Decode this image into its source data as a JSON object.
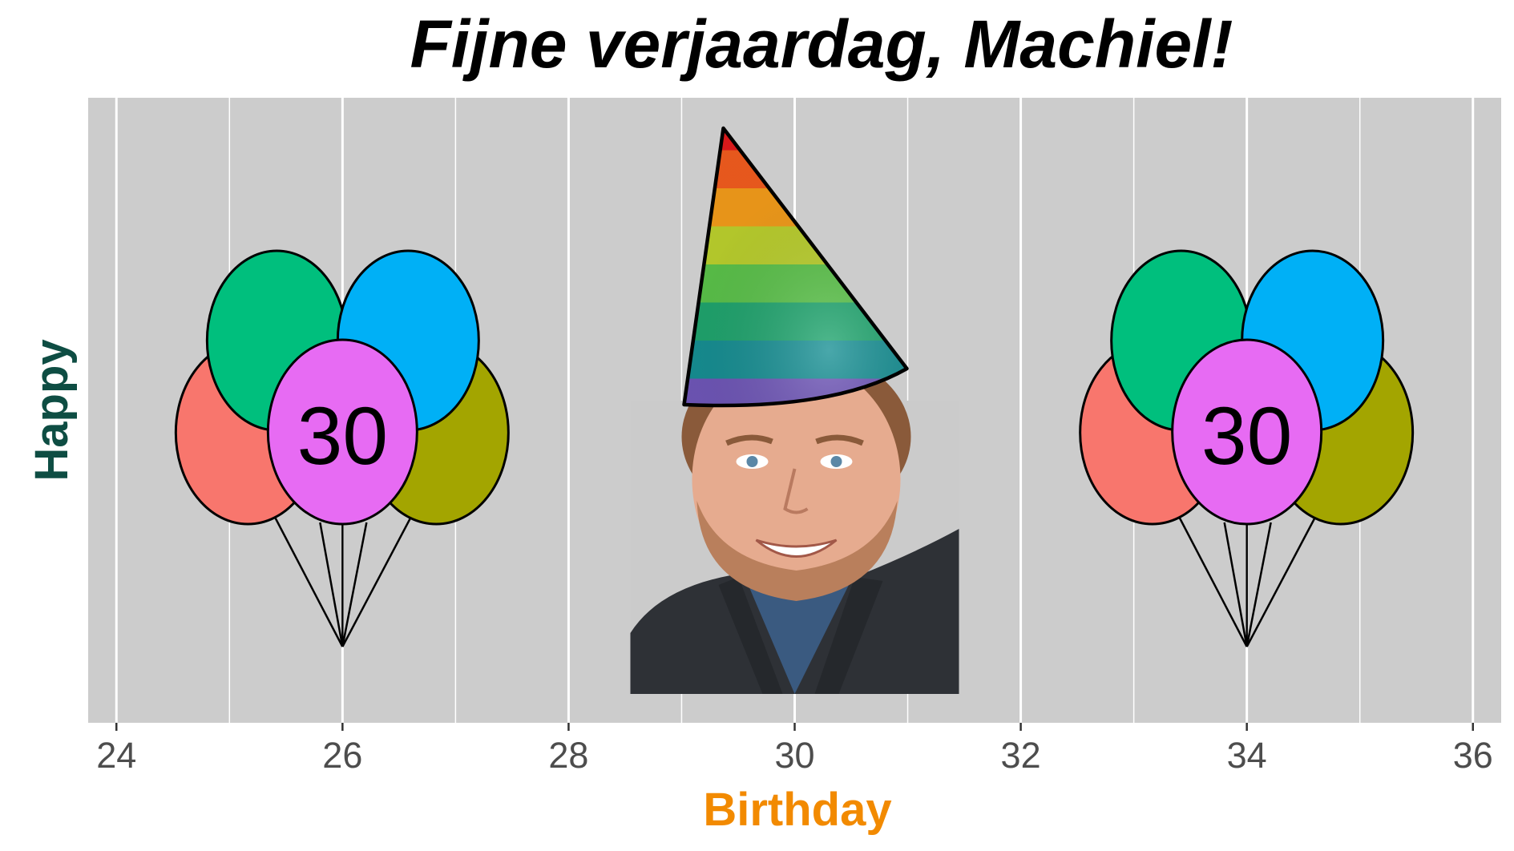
{
  "chart_data": {
    "type": "scatter",
    "title": "Fijne verjaardag, Machiel!",
    "xlabel": "Birthday",
    "ylabel": "Happy",
    "xlim": [
      23.75,
      36.25
    ],
    "x_ticks": [
      24,
      26,
      28,
      30,
      32,
      34,
      36
    ],
    "x_tick_labels": [
      "24",
      "26",
      "28",
      "30",
      "32",
      "34",
      "36"
    ],
    "grid": true,
    "legend": "none",
    "points": [
      {
        "x": 26,
        "marker": "balloon-bunch",
        "label": "30"
      },
      {
        "x": 30,
        "marker": "portrait-with-party-hat"
      },
      {
        "x": 34,
        "marker": "balloon-bunch",
        "label": "30"
      }
    ]
  },
  "colors": {
    "panel_background": "#CCCCCC",
    "grid_line": "#FFFFFF",
    "title": "#000000",
    "xlabel": "#F28A00",
    "ylabel": "#0E4D43",
    "tick_label": "#4D4D4D",
    "balloon_red": "#F8766D",
    "balloon_green": "#00BF7D",
    "balloon_blue": "#00B0F6",
    "balloon_olive": "#A3A500",
    "balloon_pink": "#E76BF3"
  },
  "icons": {
    "balloon_bunch": "balloon-bunch-icon",
    "portrait": "portrait-photo",
    "hat": "party-hat-icon"
  }
}
